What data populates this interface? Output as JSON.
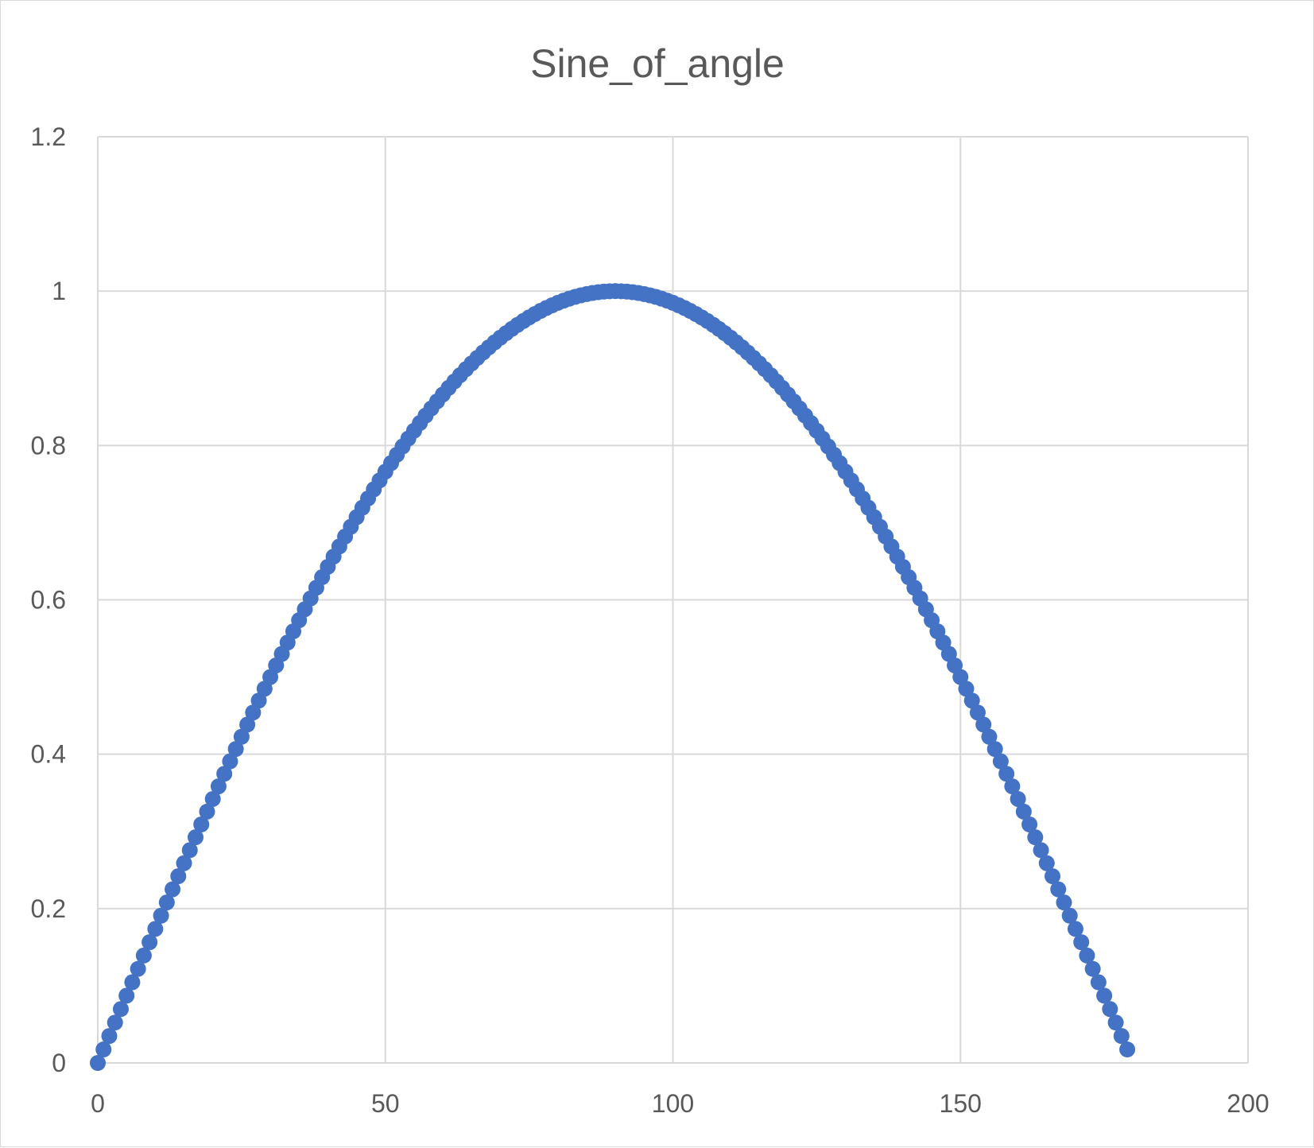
{
  "chart_data": {
    "type": "scatter",
    "title": "Sine_of_angle",
    "xlabel": "",
    "ylabel": "",
    "xlim": [
      0,
      200
    ],
    "ylim": [
      0,
      1.2
    ],
    "x_ticks": [
      "0",
      "50",
      "100",
      "150",
      "200"
    ],
    "y_ticks": [
      "0",
      "0.2",
      "0.4",
      "0.6",
      "0.8",
      "1",
      "1.2"
    ],
    "grid": true,
    "legend": "none",
    "marker_color": "#4472C4",
    "series": [
      {
        "function": "sin(x degrees)",
        "x_start": 0,
        "x_end": 179,
        "x_step": 1
      }
    ]
  }
}
